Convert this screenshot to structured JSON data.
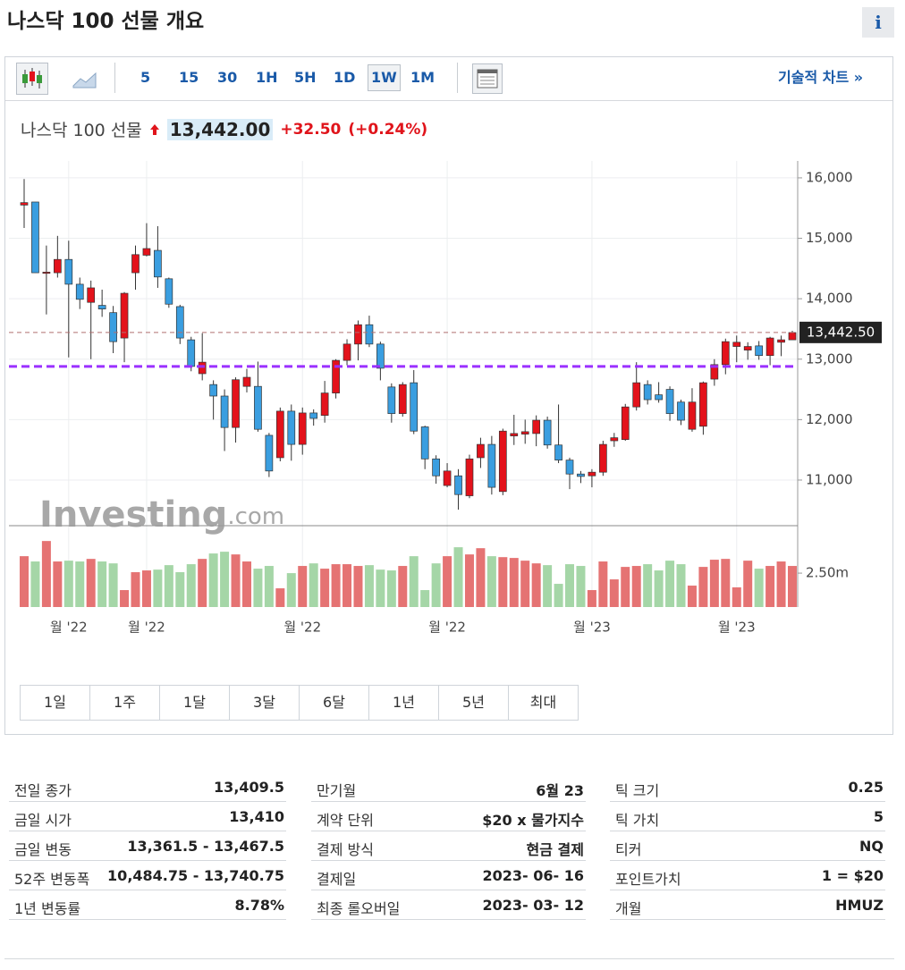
{
  "header": {
    "title": "나스닥 100 선물 개요",
    "info": "i"
  },
  "toolbar": {
    "intervals": [
      "5",
      "15",
      "30",
      "1H",
      "5H",
      "1D",
      "1W",
      "1M"
    ],
    "active": "1W",
    "link": "기술적 차트 »"
  },
  "quote": {
    "name": "나스닥 100 선물",
    "price": "13,442.00",
    "change": "+32.50",
    "change_pct": "(+0.24%)"
  },
  "chart_data": {
    "type": "candlestick",
    "categories": [
      null,
      null,
      null,
      null,
      "월 '22",
      null,
      null,
      null,
      null,
      null,
      null,
      "월 '22",
      null,
      null,
      null,
      null,
      null,
      null,
      null,
      null,
      null,
      null,
      null,
      null,
      null,
      "월 '22",
      null,
      null,
      null,
      null,
      null,
      null,
      null,
      null,
      null,
      null,
      null,
      null,
      "월 '22",
      null,
      null,
      null,
      null,
      null,
      null,
      null,
      null,
      null,
      null,
      null,
      null,
      "월 '23",
      null,
      null,
      null,
      null,
      null,
      null,
      null,
      null,
      null,
      null,
      null,
      null,
      "월 '23",
      null,
      null,
      null,
      null,
      null
    ],
    "open": [
      15550,
      15600,
      14420,
      14430,
      14650,
      14240,
      13940,
      13890,
      13770,
      13350,
      14430,
      14720,
      14800,
      14330,
      13870,
      13320,
      12760,
      12580,
      12390,
      11870,
      12550,
      12550,
      11740,
      11370,
      12140,
      11590,
      12110,
      12070,
      12440,
      12980,
      13250,
      13570,
      13250,
      12540,
      12100,
      12610,
      11880,
      11350,
      10910,
      11070,
      10740,
      11370,
      11590,
      10810,
      11730,
      11760,
      11770,
      11990,
      11580,
      11330,
      11100,
      11070,
      11130,
      11650,
      11670,
      12210,
      12580,
      12410,
      12500,
      12290,
      11840,
      11890,
      12670,
      12910,
      13210,
      13150,
      13220,
      13060,
      13280,
      13320
    ],
    "high": [
      15980,
      15600,
      14880,
      15040,
      14960,
      14350,
      14300,
      14150,
      13880,
      14110,
      14880,
      15250,
      15200,
      14350,
      13900,
      13370,
      13430,
      12650,
      12500,
      12700,
      12840,
      12960,
      11780,
      12200,
      12250,
      12200,
      12170,
      12640,
      13000,
      13330,
      13640,
      13720,
      13290,
      12600,
      12620,
      12820,
      11900,
      11410,
      11280,
      11180,
      11420,
      11700,
      11730,
      11850,
      12080,
      12000,
      12070,
      12050,
      12250,
      11370,
      11150,
      11180,
      11650,
      11780,
      12260,
      12950,
      12650,
      12620,
      12550,
      12330,
      12520,
      12630,
      13000,
      13340,
      13390,
      13280,
      13300,
      13370,
      13390,
      13470
    ],
    "low": [
      15170,
      14430,
      13740,
      14350,
      13030,
      13830,
      13000,
      13700,
      13100,
      12950,
      14150,
      14700,
      14180,
      13850,
      13250,
      12800,
      12650,
      12000,
      11480,
      11620,
      12450,
      11800,
      11050,
      11310,
      11320,
      11420,
      11900,
      11950,
      12350,
      12900,
      12980,
      13200,
      12650,
      11950,
      12050,
      11760,
      11180,
      10940,
      10880,
      10510,
      10700,
      11200,
      10760,
      10750,
      11580,
      11600,
      11560,
      11520,
      11280,
      10850,
      10950,
      10880,
      11070,
      11550,
      11650,
      12150,
      12250,
      12280,
      11980,
      11910,
      11800,
      11750,
      12560,
      12750,
      12950,
      12990,
      12990,
      12900,
      13050,
      13360
    ],
    "close": [
      15590,
      14430,
      14440,
      14650,
      14240,
      13990,
      14180,
      13830,
      13290,
      14090,
      14730,
      14830,
      14360,
      13910,
      13350,
      12880,
      12950,
      12390,
      11870,
      12660,
      12700,
      11840,
      11150,
      12140,
      11590,
      12110,
      12020,
      12440,
      12980,
      13250,
      13570,
      13250,
      12850,
      12100,
      12580,
      11810,
      11350,
      11070,
      11150,
      10760,
      11350,
      11590,
      10880,
      11810,
      11770,
      11800,
      11990,
      11580,
      11330,
      11100,
      11060,
      11130,
      11590,
      11700,
      12210,
      12610,
      12330,
      12330,
      12100,
      11990,
      12290,
      12610,
      12910,
      13290,
      13280,
      13210,
      13060,
      13350,
      13320,
      13440
    ],
    "volume": [
      3.75,
      3.36,
      4.87,
      3.36,
      3.42,
      3.36,
      3.55,
      3.36,
      3.22,
      1.25,
      2.57,
      2.7,
      2.76,
      3.09,
      2.57,
      3.16,
      3.55,
      3.95,
      4.08,
      3.88,
      3.36,
      2.83,
      3.03,
      1.38,
      2.5,
      3.03,
      3.22,
      2.83,
      3.16,
      3.16,
      3.03,
      3.09,
      2.76,
      2.7,
      3.03,
      3.75,
      1.25,
      3.22,
      3.75,
      4.41,
      3.88,
      4.34,
      3.75,
      3.68,
      3.62,
      3.42,
      3.22,
      3.09,
      1.71,
      3.16,
      3.03,
      1.25,
      3.36,
      2.04,
      2.96,
      3.03,
      3.16,
      2.7,
      3.42,
      3.16,
      1.58,
      2.96,
      3.49,
      3.55,
      1.45,
      3.42,
      2.83,
      3.03,
      3.36,
      3.03
    ],
    "ylim": [
      10260,
      16280
    ],
    "yticks": [
      {
        "value": 11000,
        "label": "11,000"
      },
      {
        "value": 12000,
        "label": "12,000"
      },
      {
        "value": 13000,
        "label": "13,000"
      },
      {
        "value": 14000,
        "label": "14,000"
      },
      {
        "value": 15000,
        "label": "15,000"
      },
      {
        "value": 16000,
        "label": "16,000"
      }
    ],
    "volume_ylim": [
      0,
      6
    ],
    "volume_yticks": [
      {
        "value": 2.5,
        "label": "2.50m"
      }
    ],
    "last_price": {
      "value": 13442.5,
      "label": "13,442.50"
    },
    "hline": 12880,
    "hline_color": "#9b30ff",
    "up_color": "#e3121b",
    "down_color": "#3a9ee0",
    "volume_up_color": "#e57373",
    "volume_down_color": "#a5d6a7",
    "grid": true,
    "watermark": [
      "Investing",
      ".com"
    ]
  },
  "ranges": [
    "1일",
    "1주",
    "1달",
    "3달",
    "6달",
    "1년",
    "5년",
    "최대"
  ],
  "stats": [
    [
      [
        "전일 종가",
        "13,409.5"
      ],
      [
        "금일 시가",
        "13,410"
      ],
      [
        "금일 변동",
        "13,361.5 - 13,467.5"
      ],
      [
        "52주 변동폭",
        "10,484.75 - 13,740.75"
      ],
      [
        "1년 변동률",
        "8.78%"
      ]
    ],
    [
      [
        "만기월",
        "6월 23"
      ],
      [
        "계약 단위",
        "$20 x 물가지수"
      ],
      [
        "결제 방식",
        "현금 결제"
      ],
      [
        "결제일",
        "2023- 06- 16"
      ],
      [
        "최종 롤오버일",
        "2023- 03- 12"
      ]
    ],
    [
      [
        "틱 크기",
        "0.25"
      ],
      [
        "틱 가치",
        "5"
      ],
      [
        "티커",
        "NQ"
      ],
      [
        "포인트가치",
        "1 = $20"
      ],
      [
        "개월",
        "HMUZ"
      ]
    ]
  ]
}
